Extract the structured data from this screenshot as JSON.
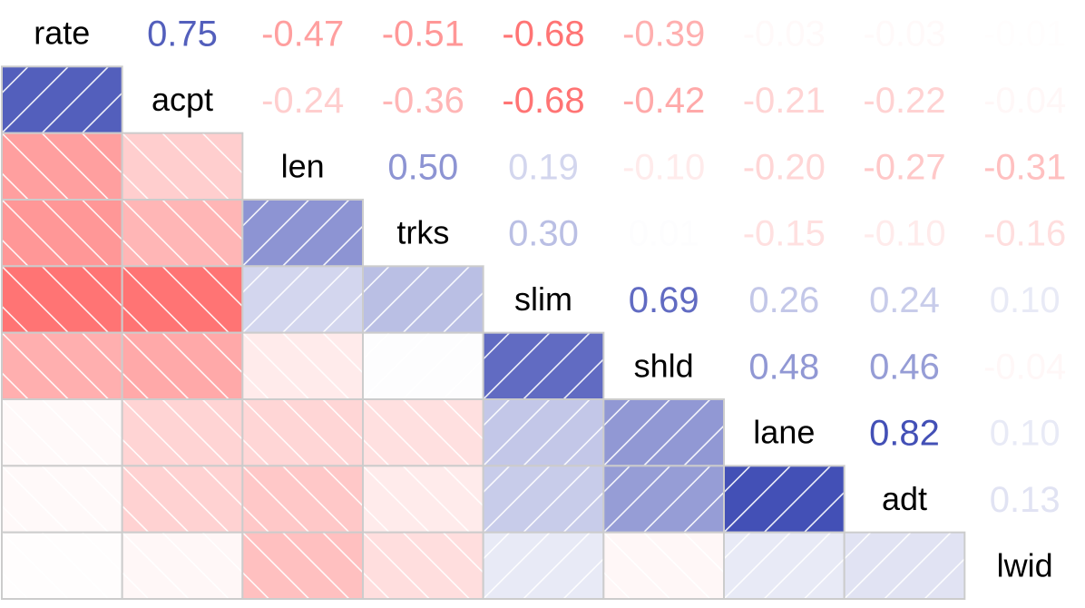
{
  "chart_data": {
    "type": "heatmap",
    "variables": [
      "rate",
      "acpt",
      "len",
      "trks",
      "slim",
      "shld",
      "lane",
      "adt",
      "lwid"
    ],
    "matrix": [
      [
        1.0,
        0.75,
        -0.47,
        -0.51,
        -0.68,
        -0.39,
        -0.03,
        -0.03,
        -0.01
      ],
      [
        0.75,
        1.0,
        -0.24,
        -0.36,
        -0.68,
        -0.42,
        -0.21,
        -0.22,
        -0.04
      ],
      [
        -0.47,
        -0.24,
        1.0,
        0.5,
        0.19,
        -0.1,
        -0.2,
        -0.27,
        -0.31
      ],
      [
        -0.51,
        -0.36,
        0.5,
        1.0,
        0.3,
        0.01,
        -0.15,
        -0.1,
        -0.16
      ],
      [
        -0.68,
        -0.68,
        0.19,
        0.3,
        1.0,
        0.69,
        0.26,
        0.24,
        0.1
      ],
      [
        -0.39,
        -0.42,
        -0.1,
        0.01,
        0.69,
        1.0,
        0.48,
        0.46,
        -0.04
      ],
      [
        -0.03,
        -0.21,
        -0.2,
        -0.15,
        0.26,
        0.48,
        1.0,
        0.82,
        0.1
      ],
      [
        -0.03,
        -0.22,
        -0.27,
        -0.1,
        0.24,
        0.46,
        0.82,
        1.0,
        0.13
      ],
      [
        -0.01,
        -0.04,
        -0.31,
        -0.16,
        0.1,
        -0.04,
        0.1,
        0.13,
        1.0
      ]
    ],
    "lower_panel": "shaded",
    "upper_panel": "coefficient",
    "diagonal": "variable-names",
    "colors": {
      "positive": "#1a29a6",
      "negative": "#ff3333",
      "neutral": "#ffffff",
      "grid": "#cccccc"
    }
  }
}
